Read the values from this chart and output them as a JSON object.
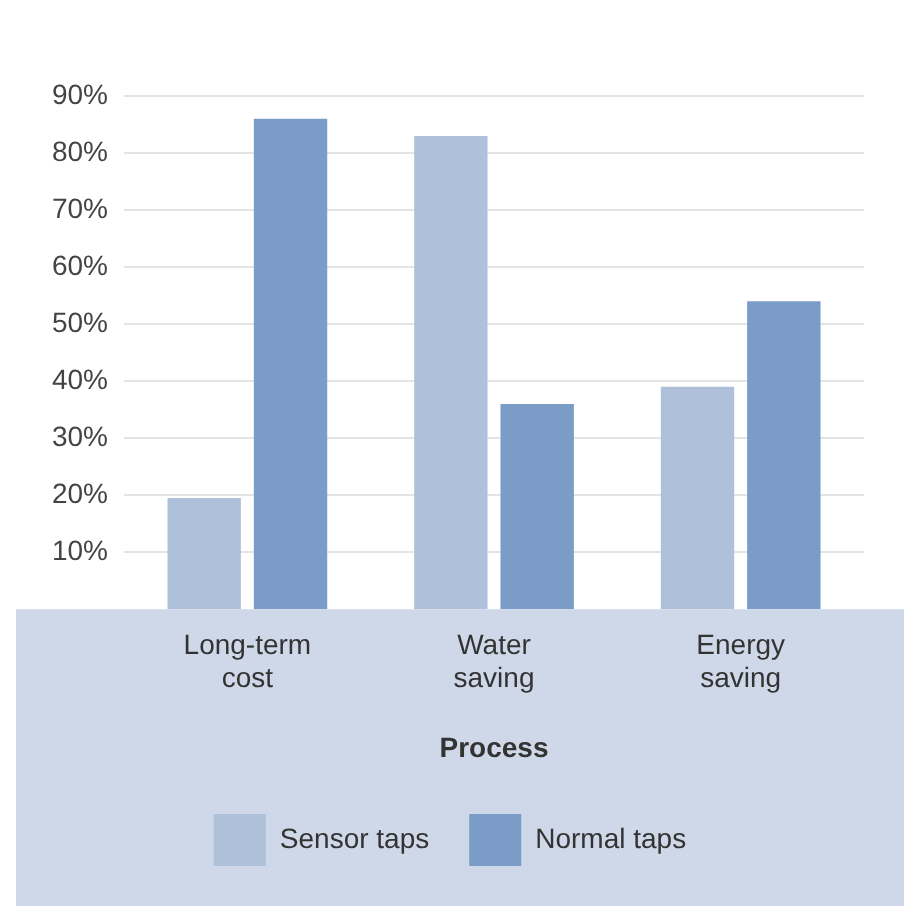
{
  "chart_data": {
    "type": "bar",
    "xlabel": "Process",
    "categories": [
      "Long-term cost",
      "Water saving",
      "Energy saving"
    ],
    "series": [
      {
        "name": "Sensor taps",
        "color": "#aec0da",
        "values": [
          19.5,
          83,
          39
        ]
      },
      {
        "name": "Normal taps",
        "color": "#7a9cc6",
        "values": [
          86,
          36,
          54
        ]
      }
    ],
    "ylim": [
      0,
      90
    ],
    "yticks": [
      {
        "value": 10,
        "label": "10%"
      },
      {
        "value": 20,
        "label": "20%"
      },
      {
        "value": 30,
        "label": "30%"
      },
      {
        "value": 40,
        "label": "40%"
      },
      {
        "value": 50,
        "label": "50%"
      },
      {
        "value": 60,
        "label": "60%"
      },
      {
        "value": 70,
        "label": "70%"
      },
      {
        "value": 80,
        "label": "80%"
      },
      {
        "value": 90,
        "label": "90%"
      }
    ],
    "grid": "y",
    "legend": "bottom"
  }
}
